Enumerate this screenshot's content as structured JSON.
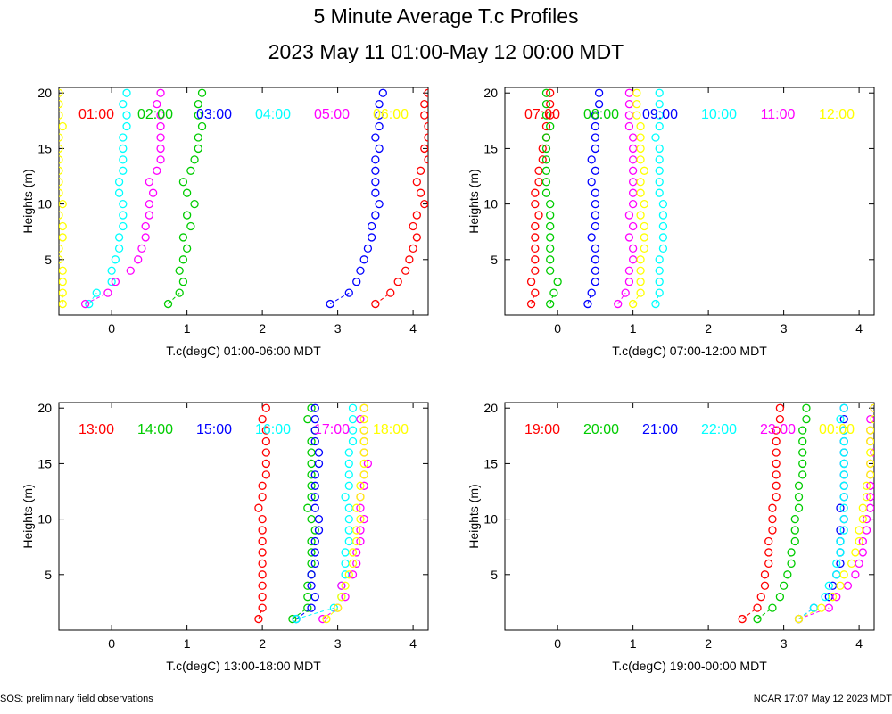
{
  "page": {
    "title": "5 Minute Average T.c Profiles",
    "subtitle": "2023 May 11 01:00-May 12 00:00 MDT",
    "footer_left": "SOS: preliminary field observations",
    "footer_right": "NCAR 17:07 May 12 2023 MDT"
  },
  "chart_data": [
    {
      "type": "scatter",
      "xlabel": "T.c(degC) 01:00-06:00 MDT",
      "ylabel": "Heights (m)",
      "xlim": [
        -0.7,
        4.2
      ],
      "ylim": [
        0,
        20.5
      ],
      "xticks": [
        "0",
        "1",
        "2",
        "3",
        "4"
      ],
      "yticks": [
        "5",
        "10",
        "15",
        "20"
      ],
      "heights": [
        1,
        2,
        3,
        4,
        5,
        6,
        7,
        8,
        9,
        10,
        11,
        12,
        13,
        14,
        15,
        16,
        17,
        18,
        19,
        20
      ],
      "series": [
        {
          "name": "01:00",
          "color": "#ff0000",
          "values": [
            3.5,
            3.7,
            3.8,
            3.9,
            3.95,
            4.0,
            4.05,
            4.0,
            4.05,
            4.15,
            4.1,
            4.05,
            4.1,
            4.2,
            4.15,
            4.2,
            4.2,
            4.15,
            4.15,
            4.2
          ]
        },
        {
          "name": "02:00",
          "color": "#00cc00",
          "values": [
            0.75,
            0.9,
            0.95,
            0.9,
            0.95,
            1.0,
            0.95,
            1.05,
            1.0,
            1.1,
            1.0,
            0.95,
            1.05,
            1.1,
            1.15,
            1.15,
            1.2,
            1.15,
            1.15,
            1.2
          ]
        },
        {
          "name": "03:00",
          "color": "#0000ff",
          "values": [
            2.9,
            3.15,
            3.25,
            3.3,
            3.35,
            3.4,
            3.45,
            3.45,
            3.5,
            3.55,
            3.5,
            3.5,
            3.5,
            3.5,
            3.55,
            3.5,
            3.55,
            3.55,
            3.55,
            3.6
          ]
        },
        {
          "name": "04:00",
          "color": "#00ffff",
          "values": [
            -0.3,
            -0.2,
            0.0,
            0.0,
            0.05,
            0.1,
            0.1,
            0.15,
            0.15,
            0.15,
            0.1,
            0.1,
            0.15,
            0.15,
            0.15,
            0.15,
            0.2,
            0.2,
            0.15,
            0.2
          ]
        },
        {
          "name": "05:00",
          "color": "#ff00ff",
          "values": [
            -0.35,
            -0.05,
            0.05,
            0.25,
            0.35,
            0.4,
            0.45,
            0.45,
            0.5,
            0.5,
            0.55,
            0.5,
            0.6,
            0.65,
            0.65,
            0.65,
            0.65,
            0.65,
            0.6,
            0.65
          ]
        },
        {
          "name": "06:00",
          "color": "#ffff00",
          "values": [
            -0.65,
            -0.65,
            -0.65,
            -0.65,
            -0.7,
            -0.7,
            -0.65,
            -0.65,
            -0.7,
            -0.65,
            -0.7,
            -0.7,
            -0.7,
            -0.7,
            -0.7,
            -0.7,
            -0.65,
            -0.7,
            -0.7,
            -0.7
          ]
        }
      ]
    },
    {
      "type": "scatter",
      "xlabel": "T.c(degC) 07:00-12:00 MDT",
      "ylabel": "Heights (m)",
      "xlim": [
        -0.7,
        4.2
      ],
      "ylim": [
        0,
        20.5
      ],
      "xticks": [
        "0",
        "1",
        "2",
        "3",
        "4"
      ],
      "yticks": [
        "5",
        "10",
        "15",
        "20"
      ],
      "heights": [
        1,
        2,
        3,
        4,
        5,
        6,
        7,
        8,
        9,
        10,
        11,
        12,
        13,
        14,
        15,
        16,
        17,
        18,
        19,
        20
      ],
      "series": [
        {
          "name": "07:00",
          "color": "#ff0000",
          "values": [
            -0.35,
            -0.3,
            -0.35,
            -0.3,
            -0.3,
            -0.3,
            -0.3,
            -0.3,
            -0.25,
            -0.3,
            -0.3,
            -0.25,
            -0.25,
            -0.2,
            -0.2,
            -0.15,
            -0.15,
            -0.1,
            -0.1,
            -0.1
          ]
        },
        {
          "name": "08:00",
          "color": "#00cc00",
          "values": [
            -0.1,
            -0.05,
            0.0,
            -0.1,
            -0.1,
            -0.1,
            -0.1,
            -0.1,
            -0.1,
            -0.1,
            -0.15,
            -0.15,
            -0.15,
            -0.15,
            -0.15,
            -0.15,
            -0.1,
            -0.15,
            -0.15,
            -0.15
          ]
        },
        {
          "name": "09:00",
          "color": "#0000ff",
          "values": [
            0.4,
            0.45,
            0.5,
            0.5,
            0.5,
            0.5,
            0.45,
            0.5,
            0.5,
            0.5,
            0.5,
            0.45,
            0.5,
            0.45,
            0.5,
            0.5,
            0.5,
            0.5,
            0.55,
            0.55
          ]
        },
        {
          "name": "10:00",
          "color": "#00ffff",
          "values": [
            1.3,
            1.35,
            1.35,
            1.35,
            1.35,
            1.4,
            1.4,
            1.4,
            1.4,
            1.4,
            1.35,
            1.35,
            1.35,
            1.35,
            1.35,
            1.3,
            1.35,
            1.35,
            1.35,
            1.35
          ]
        },
        {
          "name": "11:00",
          "color": "#ff00ff",
          "values": [
            0.8,
            0.9,
            0.95,
            0.95,
            1.0,
            1.0,
            0.95,
            1.0,
            0.95,
            1.0,
            1.0,
            1.0,
            1.0,
            1.0,
            1.0,
            1.0,
            0.95,
            0.95,
            0.95,
            0.95
          ]
        },
        {
          "name": "12:00",
          "color": "#ffff00",
          "values": [
            1.0,
            1.1,
            1.1,
            1.1,
            1.1,
            1.15,
            1.15,
            1.15,
            1.1,
            1.15,
            1.1,
            1.1,
            1.15,
            1.1,
            1.1,
            1.1,
            1.1,
            1.05,
            1.05,
            1.05
          ]
        }
      ]
    },
    {
      "type": "scatter",
      "xlabel": "T.c(degC) 13:00-18:00 MDT",
      "ylabel": "Heights (m)",
      "xlim": [
        -0.7,
        4.2
      ],
      "ylim": [
        0,
        20.5
      ],
      "xticks": [
        "0",
        "1",
        "2",
        "3",
        "4"
      ],
      "yticks": [
        "5",
        "10",
        "15",
        "20"
      ],
      "heights": [
        1,
        2,
        3,
        4,
        5,
        6,
        7,
        8,
        9,
        10,
        11,
        12,
        13,
        14,
        15,
        16,
        17,
        18,
        19,
        20
      ],
      "series": [
        {
          "name": "13:00",
          "color": "#ff0000",
          "values": [
            1.95,
            2.0,
            2.0,
            2.0,
            2.0,
            2.0,
            2.0,
            2.0,
            2.0,
            2.0,
            1.95,
            2.0,
            2.0,
            2.05,
            2.05,
            2.05,
            2.05,
            2.05,
            2.0,
            2.05
          ]
        },
        {
          "name": "14:00",
          "color": "#00cc00",
          "values": [
            2.4,
            2.6,
            2.6,
            2.6,
            2.65,
            2.65,
            2.65,
            2.65,
            2.7,
            2.65,
            2.6,
            2.65,
            2.65,
            2.65,
            2.65,
            2.65,
            2.65,
            2.7,
            2.6,
            2.65
          ]
        },
        {
          "name": "15:00",
          "color": "#0000ff",
          "values": [
            2.45,
            2.65,
            2.7,
            2.65,
            2.65,
            2.7,
            2.7,
            2.7,
            2.75,
            2.75,
            2.7,
            2.7,
            2.7,
            2.7,
            2.75,
            2.75,
            2.7,
            2.7,
            2.7,
            2.7
          ]
        },
        {
          "name": "16:00",
          "color": "#00ffff",
          "values": [
            2.45,
            2.95,
            3.05,
            3.05,
            3.1,
            3.1,
            3.1,
            3.15,
            3.15,
            3.15,
            3.15,
            3.1,
            3.15,
            3.15,
            3.15,
            3.15,
            3.2,
            3.2,
            3.2,
            3.2
          ]
        },
        {
          "name": "17:00",
          "color": "#ff00ff",
          "values": [
            2.8,
            3.0,
            3.1,
            3.05,
            3.2,
            3.25,
            3.25,
            3.3,
            3.3,
            3.35,
            3.3,
            3.3,
            3.35,
            3.35,
            3.4,
            3.35,
            3.35,
            3.35,
            3.3,
            3.35
          ]
        },
        {
          "name": "18:00",
          "color": "#ffff00",
          "values": [
            2.85,
            3.0,
            3.05,
            3.1,
            3.15,
            3.2,
            3.2,
            3.25,
            3.25,
            3.3,
            3.25,
            3.3,
            3.3,
            3.35,
            3.35,
            3.35,
            3.35,
            3.35,
            3.35,
            3.35
          ]
        }
      ]
    },
    {
      "type": "scatter",
      "xlabel": "T.c(degC) 19:00-00:00 MDT",
      "ylabel": "Heights (m)",
      "xlim": [
        -0.7,
        4.2
      ],
      "ylim": [
        0,
        20.5
      ],
      "xticks": [
        "0",
        "1",
        "2",
        "3",
        "4"
      ],
      "yticks": [
        "5",
        "10",
        "15",
        "20"
      ],
      "heights": [
        1,
        2,
        3,
        4,
        5,
        6,
        7,
        8,
        9,
        10,
        11,
        12,
        13,
        14,
        15,
        16,
        17,
        18,
        19,
        20
      ],
      "series": [
        {
          "name": "19:00",
          "color": "#ff0000",
          "values": [
            2.45,
            2.65,
            2.7,
            2.75,
            2.75,
            2.8,
            2.8,
            2.8,
            2.85,
            2.85,
            2.85,
            2.9,
            2.9,
            2.9,
            2.9,
            2.9,
            2.9,
            2.9,
            2.95,
            2.95
          ]
        },
        {
          "name": "20:00",
          "color": "#00cc00",
          "values": [
            2.65,
            2.85,
            2.95,
            3.0,
            3.05,
            3.1,
            3.1,
            3.15,
            3.15,
            3.15,
            3.2,
            3.2,
            3.2,
            3.25,
            3.25,
            3.25,
            3.25,
            3.25,
            3.3,
            3.3
          ]
        },
        {
          "name": "21:00",
          "color": "#0000ff",
          "values": [
            3.2,
            3.4,
            3.6,
            3.65,
            3.7,
            3.75,
            3.75,
            3.75,
            3.75,
            3.8,
            3.75,
            3.8,
            3.8,
            3.8,
            3.8,
            3.8,
            3.8,
            3.8,
            3.8,
            3.8
          ]
        },
        {
          "name": "22:00",
          "color": "#00ffff",
          "values": [
            3.2,
            3.4,
            3.55,
            3.6,
            3.7,
            3.7,
            3.75,
            3.75,
            3.8,
            3.8,
            3.8,
            3.8,
            3.8,
            3.8,
            3.8,
            3.8,
            3.8,
            3.8,
            3.75,
            3.8
          ]
        },
        {
          "name": "23:00",
          "color": "#ff00ff",
          "values": [
            3.2,
            3.6,
            3.7,
            3.85,
            3.95,
            4.0,
            4.05,
            4.05,
            4.1,
            4.1,
            4.15,
            4.15,
            4.15,
            4.15,
            4.15,
            4.2,
            4.15,
            4.15,
            4.15,
            4.2
          ]
        },
        {
          "name": "00:00",
          "color": "#ffff00",
          "values": [
            3.2,
            3.5,
            3.65,
            3.75,
            3.8,
            3.9,
            3.95,
            4.0,
            4.0,
            4.05,
            4.05,
            4.1,
            4.1,
            4.15,
            4.15,
            4.15,
            4.15,
            4.15,
            4.2,
            4.2
          ]
        }
      ]
    }
  ]
}
